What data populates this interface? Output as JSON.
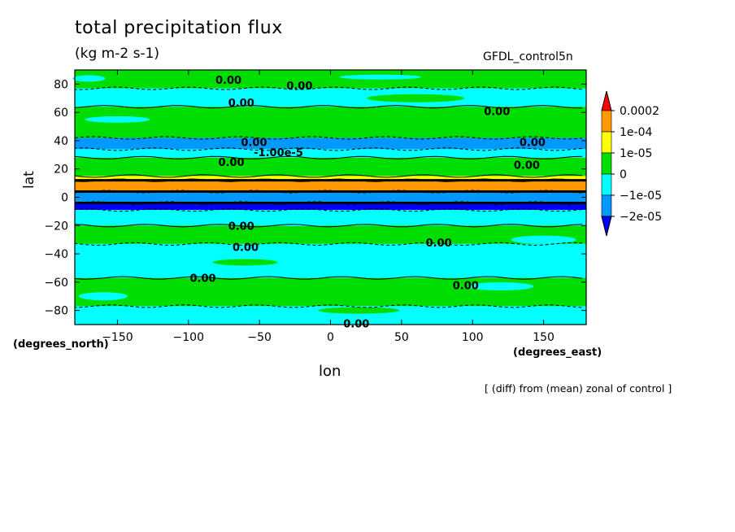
{
  "chart_data": {
    "type": "heatmap",
    "title": "total precipitation flux",
    "units": "(kg m-2 s-1)",
    "dataset": "GFDL_control5n",
    "xlabel": "lon",
    "ylabel": "lat",
    "x_units": "(degrees_east)",
    "y_units": "(degrees_north)",
    "footnote": "[ (diff) from (mean) zonal of control ]",
    "xlim": [
      -180,
      180
    ],
    "ylim": [
      -90,
      90
    ],
    "x_ticks": [
      -150,
      -100,
      -50,
      0,
      50,
      100,
      150
    ],
    "y_ticks": [
      -80,
      -60,
      -40,
      -20,
      0,
      20,
      40,
      60,
      80
    ],
    "colorbar": {
      "boundaries": [
        "0.0002",
        "1e-04",
        "1e-05",
        "0",
        "-1e-05",
        "-2e-05"
      ],
      "colors": [
        "#ff0000",
        "#ff9900",
        "#ffff00",
        "#00dd00",
        "#00ffff",
        "#0099ff",
        "#0000ff"
      ]
    },
    "latitude_bands": [
      {
        "lat": [
          77,
          90
        ],
        "level": "0 to 1e-05"
      },
      {
        "lat": [
          64,
          77
        ],
        "level": "-1e-05 to 0"
      },
      {
        "lat": [
          42,
          64
        ],
        "level": "0 to 1e-05"
      },
      {
        "lat": [
          34,
          42
        ],
        "level": "-2e-05 to -1e-05"
      },
      {
        "lat": [
          28,
          34
        ],
        "level": "-1e-05 to 0"
      },
      {
        "lat": [
          15,
          28
        ],
        "level": "0 to 1e-05"
      },
      {
        "lat": [
          12,
          15
        ],
        "level": "1e-05 to 1e-04"
      },
      {
        "lat": [
          4,
          12
        ],
        "level": "1e-04 to 0.0002"
      },
      {
        "lat": [
          -4,
          4
        ],
        "level": "-2e-05 to -1e-05"
      },
      {
        "lat": [
          -9,
          -4
        ],
        "level": "below -2e-05"
      },
      {
        "lat": [
          -20,
          -9
        ],
        "level": "-1e-05 to 0"
      },
      {
        "lat": [
          -33,
          -20
        ],
        "level": "0 to 1e-05"
      },
      {
        "lat": [
          -57,
          -33
        ],
        "level": "-1e-05 to 0"
      },
      {
        "lat": [
          -77,
          -57
        ],
        "level": "0 to 1e-05"
      },
      {
        "lat": [
          -90,
          -77
        ],
        "level": "-1e-05 to 0"
      }
    ],
    "contour_labels": [
      {
        "text": "0.00",
        "lon": -81,
        "lat": 83
      },
      {
        "text": "0.00",
        "lon": -31,
        "lat": 79
      },
      {
        "text": "0.00",
        "lon": -72,
        "lat": 67
      },
      {
        "text": "0.00",
        "lon": 108,
        "lat": 61
      },
      {
        "text": "0.00",
        "lon": -63,
        "lat": 39
      },
      {
        "text": "-1.00e-5",
        "lon": -54,
        "lat": 32
      },
      {
        "text": "0.00",
        "lon": 133,
        "lat": 39
      },
      {
        "text": "0.00",
        "lon": -79,
        "lat": 25
      },
      {
        "text": "0.00",
        "lon": 129,
        "lat": 23
      },
      {
        "text": "0.00",
        "lon": -72,
        "lat": -20
      },
      {
        "text": "0.00",
        "lon": -69,
        "lat": -35
      },
      {
        "text": "0.00",
        "lon": 67,
        "lat": -32
      },
      {
        "text": "0.00",
        "lon": -99,
        "lat": -57
      },
      {
        "text": "0.00",
        "lon": 86,
        "lat": -62
      },
      {
        "text": "0.00",
        "lon": 9,
        "lat": -89
      }
    ]
  }
}
